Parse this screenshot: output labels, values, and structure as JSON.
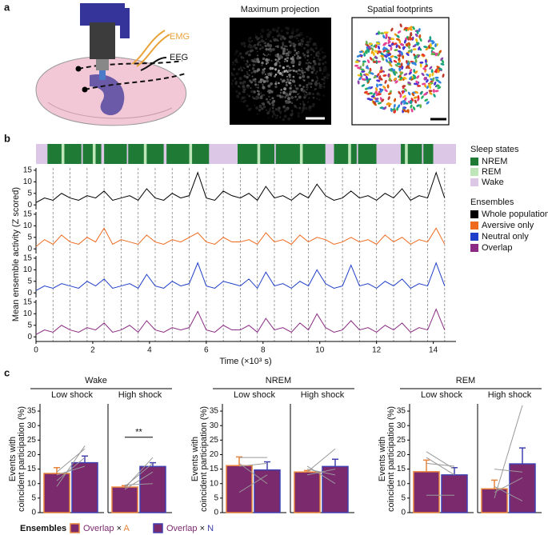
{
  "panel_labels": [
    "a",
    "b",
    "c"
  ],
  "panel_a": {
    "emg": "EMG",
    "eeg": "EEG",
    "max_projection": "Maximum projection",
    "spatial_footprints": "Spatial footprints"
  },
  "chart_data": [
    {
      "type": "line",
      "x_label": "Time (×10³ s)",
      "y_label": "Mean ensemble activity (Z scored)",
      "xlim": [
        0,
        14.8
      ],
      "xticks": [
        0,
        2,
        4,
        6,
        8,
        10,
        12,
        14
      ],
      "ylim": [
        -2,
        16
      ],
      "yticks": [
        0,
        5,
        10,
        15
      ],
      "legend_title": "Ensembles",
      "x": [
        0,
        0.3,
        0.6,
        0.9,
        1.2,
        1.5,
        1.8,
        2.1,
        2.4,
        2.7,
        3,
        3.3,
        3.6,
        3.9,
        4.2,
        4.5,
        4.8,
        5.1,
        5.4,
        5.7,
        6,
        6.3,
        6.6,
        6.9,
        7.2,
        7.5,
        7.8,
        8.1,
        8.4,
        8.7,
        9,
        9.3,
        9.6,
        9.9,
        10.2,
        10.5,
        10.8,
        11.1,
        11.4,
        11.7,
        12,
        12.3,
        12.6,
        12.9,
        13.2,
        13.5,
        13.8,
        14.1,
        14.4
      ],
      "series": [
        {
          "name": "Whole population",
          "color": "#000000",
          "values": [
            1,
            3,
            2,
            5,
            3,
            2,
            4,
            3,
            6,
            2,
            3,
            4,
            2,
            7,
            3,
            2,
            5,
            3,
            4,
            14,
            3,
            2,
            6,
            4,
            3,
            5,
            2,
            8,
            3,
            4,
            2,
            5,
            3,
            9,
            4,
            2,
            3,
            6,
            3,
            4,
            2,
            5,
            3,
            7,
            2,
            4,
            3,
            14,
            3
          ]
        },
        {
          "name": "Aversive only",
          "color": "#f06a1e",
          "values": [
            1,
            4,
            2,
            6,
            3,
            2,
            5,
            3,
            9,
            2,
            4,
            3,
            2,
            6,
            3,
            2,
            4,
            3,
            5,
            7,
            3,
            2,
            5,
            3,
            3,
            4,
            2,
            7,
            3,
            4,
            2,
            6,
            3,
            5,
            4,
            2,
            3,
            5,
            3,
            4,
            2,
            6,
            3,
            5,
            2,
            4,
            3,
            9,
            2
          ]
        },
        {
          "name": "Neutral only",
          "color": "#1f3fc8",
          "values": [
            1,
            3,
            2,
            4,
            3,
            2,
            5,
            3,
            6,
            2,
            3,
            4,
            2,
            8,
            3,
            2,
            5,
            3,
            4,
            13,
            3,
            2,
            5,
            4,
            3,
            6,
            2,
            9,
            3,
            4,
            2,
            5,
            3,
            10,
            4,
            2,
            3,
            12,
            3,
            4,
            2,
            5,
            3,
            6,
            2,
            4,
            3,
            13,
            3
          ]
        },
        {
          "name": "Overlap",
          "color": "#8a2a82",
          "values": [
            1,
            3,
            2,
            5,
            3,
            2,
            4,
            3,
            6,
            2,
            3,
            5,
            2,
            7,
            3,
            2,
            4,
            3,
            4,
            11,
            3,
            2,
            5,
            3,
            3,
            5,
            2,
            8,
            3,
            4,
            2,
            6,
            3,
            10,
            4,
            2,
            3,
            7,
            3,
            4,
            2,
            5,
            3,
            6,
            2,
            4,
            3,
            12,
            3
          ]
        }
      ],
      "dashed_lines": [
        0.6,
        1.2,
        1.8,
        2.4,
        3,
        3.6,
        4.2,
        4.8,
        5.4,
        6,
        6.6,
        7.2,
        7.8,
        8.4,
        9,
        9.6,
        10.2,
        10.8,
        11.4,
        12,
        12.6,
        13.2,
        13.8,
        14.4
      ],
      "sleep_states": {
        "title": "Sleep states",
        "states": [
          {
            "name": "NREM",
            "color": "#1e7a34",
            "segments": [
              [
                0.4,
                6.1
              ],
              [
                7.1,
                10.2
              ],
              [
                10.5,
                12
              ],
              [
                12.85,
                14
              ]
            ]
          },
          {
            "name": "REM",
            "color": "#bfe6b8",
            "segments": [
              [
                0.9,
                1.0
              ],
              [
                2.0,
                2.1
              ],
              [
                3.8,
                3.9
              ],
              [
                5.4,
                5.5
              ],
              [
                7.8,
                7.9
              ],
              [
                9.3,
                9.4
              ],
              [
                11.0,
                11.1
              ],
              [
                13.0,
                13.1
              ]
            ]
          },
          {
            "name": "Wake",
            "color": "#dcc8e6",
            "segments": [
              [
                0,
                0.4
              ],
              [
                1.6,
                1.65
              ],
              [
                2.3,
                2.4
              ],
              [
                3.2,
                3.25
              ],
              [
                4.5,
                4.6
              ],
              [
                6.1,
                7.1
              ],
              [
                8.4,
                8.45
              ],
              [
                10.2,
                10.5
              ],
              [
                11.3,
                11.35
              ],
              [
                12,
                12.85
              ],
              [
                13.6,
                13.65
              ],
              [
                14,
                14.8
              ]
            ]
          }
        ]
      }
    },
    {
      "type": "bar_group",
      "title": "Wake",
      "y_label": [
        "Events with",
        "coincident participation (%)"
      ],
      "ylim": [
        0,
        37.5
      ],
      "yticks": [
        0,
        5,
        10,
        15,
        20,
        25,
        30,
        35
      ],
      "fill": "#7b2a6e",
      "edge_colors": [
        "#e8833a",
        "#4040b0"
      ],
      "panels": [
        {
          "title": "Low shock",
          "values": [
            13.5,
            17.2
          ],
          "errors": [
            2,
            2.3
          ],
          "individual": [
            [
              9,
              23
            ],
            [
              14,
              22
            ],
            [
              13,
              16
            ],
            [
              11,
              19
            ]
          ]
        },
        {
          "title": "High shock",
          "values": [
            8.8,
            15.9
          ],
          "errors": [
            0.5,
            1.3
          ],
          "individual": [
            [
              8,
              14
            ],
            [
              9,
              17
            ],
            [
              9.5,
              10
            ],
            [
              8.5,
              19
            ]
          ],
          "annotation": "**",
          "annotation_y": 26
        }
      ]
    },
    {
      "type": "bar_group",
      "title": "NREM",
      "y_label": [
        "Events with",
        "coincident participation (%)"
      ],
      "ylim": [
        0,
        37.5
      ],
      "yticks": [
        0,
        5,
        10,
        15,
        20,
        25,
        30,
        35
      ],
      "fill": "#7b2a6e",
      "edge_colors": [
        "#e8833a",
        "#4040b0"
      ],
      "panels": [
        {
          "title": "Low shock",
          "values": [
            16.2,
            14.7
          ],
          "errors": [
            3,
            2.8
          ],
          "individual": [
            [
              19,
              19
            ],
            [
              17,
              10
            ],
            [
              7,
              13
            ],
            [
              16,
              17
            ]
          ]
        },
        {
          "title": "High shock",
          "values": [
            14,
            15.9
          ],
          "errors": [
            0.5,
            2.5
          ],
          "individual": [
            [
              14,
              22
            ],
            [
              16,
              10
            ],
            [
              13,
              15
            ],
            [
              15,
              13
            ]
          ]
        }
      ]
    },
    {
      "type": "bar_group",
      "title": "REM",
      "y_label": [
        "Events with",
        "coincident participation (%)"
      ],
      "ylim": [
        0,
        37.5
      ],
      "yticks": [
        0,
        5,
        10,
        15,
        20,
        25,
        30,
        35
      ],
      "fill": "#7b2a6e",
      "edge_colors": [
        "#e8833a",
        "#4040b0"
      ],
      "panels": [
        {
          "title": "Low shock",
          "values": [
            14.1,
            13
          ],
          "errors": [
            4,
            2.5
          ],
          "individual": [
            [
              21,
              15
            ],
            [
              19,
              13
            ],
            [
              6,
              6
            ],
            [
              17,
              16
            ]
          ]
        },
        {
          "title": "High shock",
          "values": [
            8.2,
            16.8
          ],
          "errors": [
            3,
            5.5
          ],
          "individual": [
            [
              5,
              37
            ],
            [
              7,
              12
            ],
            [
              9,
              4
            ],
            [
              15,
              14
            ]
          ]
        }
      ]
    }
  ],
  "panel_c_legend": {
    "title": "Ensembles",
    "items": [
      {
        "label": "Overlap",
        "op": "×",
        "partner": "A"
      },
      {
        "label": "Overlap",
        "op": "×",
        "partner": "N"
      }
    ]
  }
}
